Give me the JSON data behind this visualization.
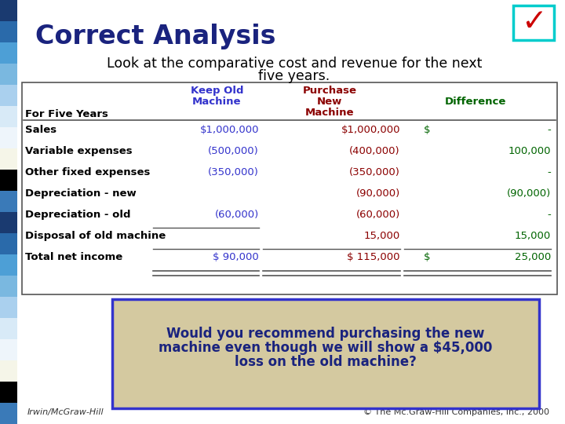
{
  "title": "Correct Analysis",
  "subtitle_line1": "Look at the comparative cost and revenue for the next",
  "subtitle_line2": "five years.",
  "title_color": "#1a237e",
  "table_rows": [
    [
      "Sales",
      "$1,000,000",
      "$1,000,000",
      "$",
      "-"
    ],
    [
      "Variable expenses",
      "(500,000)",
      "(400,000)",
      "",
      "100,000"
    ],
    [
      "Other fixed expenses",
      "(350,000)",
      "(350,000)",
      "",
      "-"
    ],
    [
      "Depreciation - new",
      "",
      "(90,000)",
      "",
      "(90,000)"
    ],
    [
      "Depreciation - old",
      "(60,000)",
      "(60,000)",
      "",
      "-"
    ],
    [
      "Disposal of old machine",
      "",
      "15,000",
      "",
      "15,000"
    ],
    [
      "Total net income",
      "$ 90,000",
      "$ 115,000",
      "$",
      "25,000"
    ]
  ],
  "col1_color": "#3333cc",
  "col2_color": "#8b0000",
  "col3_color": "#006400",
  "row_label_color": "#000000",
  "box_text_line1": "Would you recommend purchasing the new",
  "box_text_line2": "machine even though we will show a $45,000",
  "box_text_line3": "loss on the old machine?",
  "box_text_color": "#1a237e",
  "box_bg": "#d4c9a0",
  "box_border": "#3333cc",
  "footer_left": "Irwin/McGraw-Hill",
  "footer_right": "© The Mc.Graw-Hill Companies, Inc., 2000",
  "left_bar_colors": [
    "#1a3a70",
    "#2255a0",
    "#4488cc",
    "#6699cc",
    "#88aacc",
    "#aaccee",
    "#ccddee",
    "#eeeedd",
    "#000000",
    "#4488cc",
    "#1a3a70",
    "#2255a0",
    "#4488cc",
    "#6699cc",
    "#88aacc",
    "#aaccee",
    "#ccddee",
    "#eeeedd",
    "#000000",
    "#4488cc"
  ]
}
